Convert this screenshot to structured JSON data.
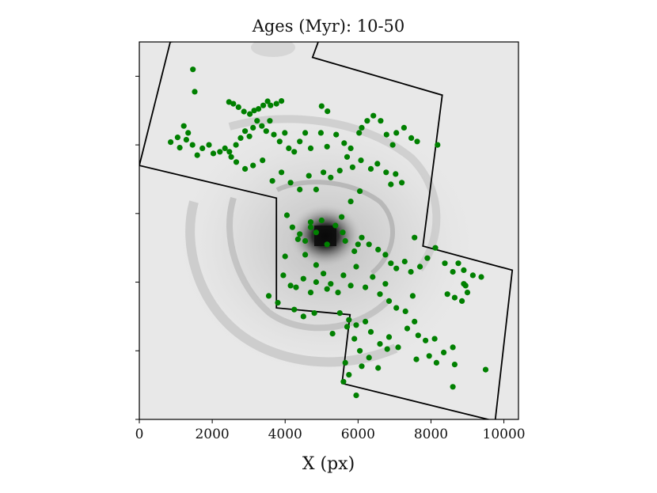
{
  "chart_data": {
    "type": "scatter",
    "title": "Ages (Myr): 10-50",
    "xlabel": "X (px)",
    "ylabel": "",
    "xlim": [
      0,
      10400
    ],
    "ylim": [
      11000,
      0
    ],
    "x_ticks": [
      0,
      2000,
      4000,
      6000,
      8000,
      10000
    ],
    "x_tick_labels": [
      "0",
      "2000",
      "4000",
      "6000",
      "8000",
      "10000"
    ],
    "y_ticks": [
      1000,
      3000,
      5000,
      7000,
      9000,
      11000
    ],
    "background": "grayscale image of a face-on spiral galaxy (inverted: dark nucleus, light disk)",
    "footprint_outline": {
      "color": "#000000",
      "vertices": [
        [
          850,
          0
        ],
        [
          0,
          3600
        ],
        [
          3760,
          4550
        ],
        [
          3760,
          7750
        ],
        [
          5780,
          7950
        ],
        [
          5560,
          9950
        ],
        [
          9760,
          11050
        ],
        [
          10230,
          6650
        ],
        [
          7780,
          5950
        ],
        [
          8310,
          1550
        ],
        [
          4750,
          450
        ],
        [
          5080,
          -500
        ]
      ]
    },
    "series": [
      {
        "marker_color": "#008000",
        "points": [
          [
            1470,
            800
          ],
          [
            1520,
            1450
          ],
          [
            2460,
            1750
          ],
          [
            2580,
            1800
          ],
          [
            2720,
            1900
          ],
          [
            2870,
            2030
          ],
          [
            3030,
            2100
          ],
          [
            3150,
            2000
          ],
          [
            3270,
            1950
          ],
          [
            3400,
            1850
          ],
          [
            3520,
            1730
          ],
          [
            3600,
            1850
          ],
          [
            3760,
            1800
          ],
          [
            3900,
            1720
          ],
          [
            5000,
            1870
          ],
          [
            5160,
            2020
          ],
          [
            1220,
            2450
          ],
          [
            1340,
            2650
          ],
          [
            1050,
            2780
          ],
          [
            860,
            2920
          ],
          [
            1110,
            3080
          ],
          [
            1290,
            2850
          ],
          [
            1460,
            3000
          ],
          [
            1590,
            3300
          ],
          [
            1730,
            3100
          ],
          [
            1910,
            3000
          ],
          [
            2030,
            3250
          ],
          [
            2210,
            3200
          ],
          [
            2350,
            3100
          ],
          [
            2520,
            3350
          ],
          [
            2650,
            3000
          ],
          [
            2780,
            2800
          ],
          [
            2900,
            2600
          ],
          [
            3020,
            2750
          ],
          [
            3120,
            2500
          ],
          [
            3230,
            2300
          ],
          [
            3360,
            2450
          ],
          [
            3480,
            2600
          ],
          [
            3580,
            2300
          ],
          [
            3690,
            2700
          ],
          [
            3850,
            2900
          ],
          [
            3990,
            2650
          ],
          [
            4100,
            3100
          ],
          [
            4250,
            3200
          ],
          [
            4400,
            2900
          ],
          [
            4550,
            2650
          ],
          [
            4700,
            3100
          ],
          [
            4980,
            2650
          ],
          [
            5150,
            3050
          ],
          [
            5400,
            2700
          ],
          [
            5620,
            2950
          ],
          [
            5800,
            3100
          ],
          [
            6030,
            2650
          ],
          [
            6100,
            2500
          ],
          [
            6250,
            2300
          ],
          [
            6420,
            2150
          ],
          [
            6620,
            2300
          ],
          [
            6780,
            2700
          ],
          [
            6950,
            3000
          ],
          [
            7050,
            2650
          ],
          [
            7260,
            2500
          ],
          [
            7460,
            2800
          ],
          [
            7620,
            2900
          ],
          [
            8180,
            3000
          ],
          [
            2470,
            3200
          ],
          [
            2660,
            3500
          ],
          [
            2900,
            3700
          ],
          [
            3120,
            3600
          ],
          [
            3380,
            3450
          ],
          [
            3650,
            4050
          ],
          [
            3900,
            3800
          ],
          [
            4150,
            4100
          ],
          [
            4400,
            4300
          ],
          [
            4650,
            3900
          ],
          [
            4850,
            4300
          ],
          [
            5050,
            3800
          ],
          [
            5250,
            3950
          ],
          [
            5500,
            3750
          ],
          [
            5700,
            3350
          ],
          [
            5850,
            3650
          ],
          [
            6080,
            3450
          ],
          [
            6350,
            3700
          ],
          [
            6530,
            3550
          ],
          [
            6770,
            3800
          ],
          [
            6900,
            4150
          ],
          [
            7030,
            3850
          ],
          [
            7200,
            4100
          ],
          [
            4050,
            5050
          ],
          [
            4200,
            5400
          ],
          [
            4350,
            5750
          ],
          [
            4400,
            5600
          ],
          [
            4550,
            5800
          ],
          [
            4700,
            5400
          ],
          [
            4850,
            5550
          ],
          [
            5000,
            5200
          ],
          [
            5150,
            5900
          ],
          [
            5380,
            5350
          ],
          [
            5580,
            5550
          ],
          [
            5650,
            5800
          ],
          [
            5900,
            6100
          ],
          [
            6100,
            5700
          ],
          [
            6300,
            5900
          ],
          [
            6550,
            6050
          ],
          [
            6750,
            6200
          ],
          [
            6900,
            6450
          ],
          [
            7050,
            6600
          ],
          [
            7280,
            6400
          ],
          [
            7450,
            6700
          ],
          [
            7700,
            6550
          ],
          [
            7900,
            6300
          ],
          [
            8120,
            6000
          ],
          [
            7550,
            5700
          ],
          [
            8380,
            6450
          ],
          [
            8600,
            6700
          ],
          [
            8750,
            6450
          ],
          [
            8900,
            6650
          ],
          [
            9150,
            6800
          ],
          [
            9380,
            6850
          ],
          [
            8900,
            7050
          ],
          [
            9000,
            7300
          ],
          [
            8450,
            7350
          ],
          [
            8650,
            7450
          ],
          [
            8850,
            7550
          ],
          [
            8950,
            7100
          ],
          [
            4550,
            6200
          ],
          [
            4850,
            6500
          ],
          [
            5050,
            6750
          ],
          [
            5250,
            7050
          ],
          [
            5450,
            7300
          ],
          [
            5600,
            6800
          ],
          [
            5800,
            7100
          ],
          [
            5950,
            6550
          ],
          [
            6200,
            7150
          ],
          [
            6400,
            6850
          ],
          [
            6600,
            7350
          ],
          [
            6750,
            7050
          ],
          [
            6850,
            7550
          ],
          [
            7050,
            7750
          ],
          [
            7300,
            7850
          ],
          [
            7500,
            7400
          ],
          [
            3950,
            6800
          ],
          [
            4150,
            7100
          ],
          [
            4300,
            7150
          ],
          [
            4500,
            6900
          ],
          [
            4700,
            7300
          ],
          [
            4850,
            7000
          ],
          [
            5150,
            7200
          ],
          [
            5500,
            7900
          ],
          [
            5750,
            8100
          ],
          [
            5950,
            8250
          ],
          [
            6200,
            8150
          ],
          [
            6350,
            8450
          ],
          [
            6600,
            8800
          ],
          [
            6850,
            8600
          ],
          [
            7100,
            8900
          ],
          [
            7350,
            8350
          ],
          [
            7550,
            8150
          ],
          [
            7650,
            8550
          ],
          [
            7850,
            8700
          ],
          [
            8100,
            8650
          ],
          [
            8350,
            9050
          ],
          [
            8600,
            8900
          ],
          [
            6050,
            9000
          ],
          [
            6300,
            9200
          ],
          [
            6550,
            9500
          ],
          [
            6800,
            8950
          ],
          [
            6100,
            9450
          ],
          [
            7600,
            9250
          ],
          [
            7950,
            9150
          ],
          [
            8150,
            9350
          ],
          [
            8600,
            10050
          ],
          [
            9500,
            9550
          ],
          [
            5950,
            10300
          ],
          [
            5750,
            9700
          ],
          [
            5600,
            9900
          ],
          [
            5650,
            9350
          ],
          [
            5900,
            8650
          ],
          [
            8650,
            9400
          ],
          [
            6050,
            4350
          ],
          [
            5800,
            4650
          ],
          [
            5550,
            5100
          ],
          [
            6000,
            5900
          ],
          [
            4700,
            5250
          ],
          [
            4000,
            6250
          ],
          [
            4800,
            7900
          ],
          [
            3550,
            7400
          ],
          [
            3800,
            7600
          ],
          [
            4250,
            7800
          ],
          [
            4500,
            8000
          ],
          [
            5300,
            8500
          ],
          [
            5700,
            8300
          ]
        ]
      }
    ]
  }
}
